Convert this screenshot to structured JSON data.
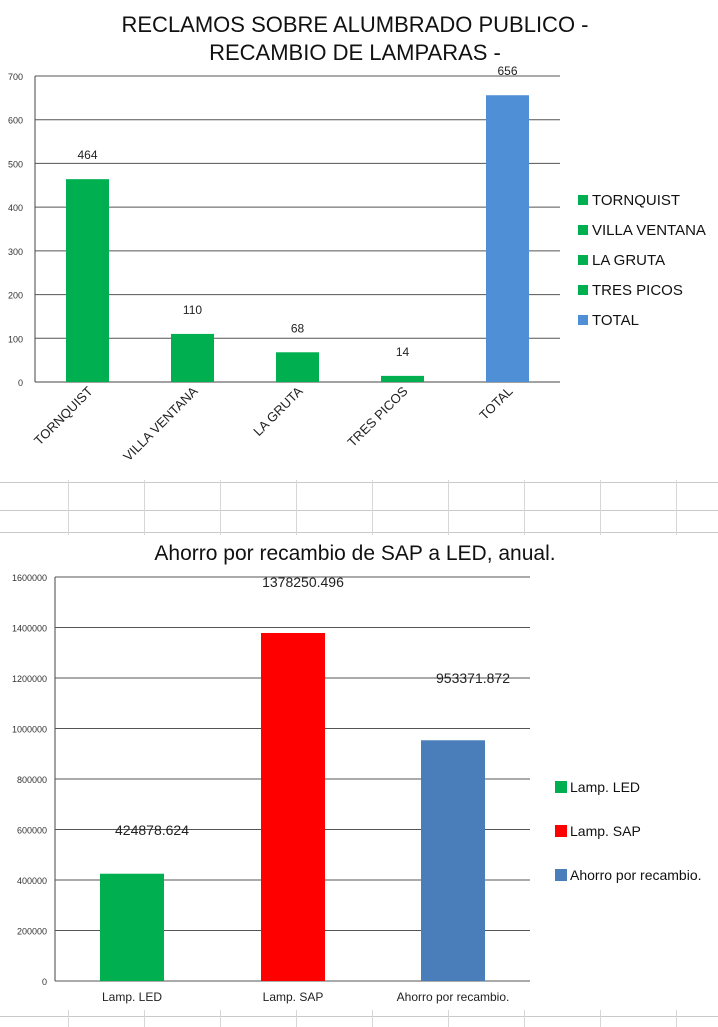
{
  "chart_data": [
    {
      "type": "bar",
      "title_line1": "RECLAMOS SOBRE ALUMBRADO PUBLICO -",
      "title_line2": "RECAMBIO DE LAMPARAS -",
      "categories": [
        "TORNQUIST",
        "VILLA VENTANA",
        "LA GRUTA",
        "TRES PICOS",
        "TOTAL"
      ],
      "values": [
        464,
        110,
        68,
        14,
        656
      ],
      "data_labels": [
        "464",
        "110",
        "68",
        "14",
        "656"
      ],
      "colors": [
        "#00b050",
        "#00b050",
        "#00b050",
        "#00b050",
        "#4f8fd6"
      ],
      "ylim": [
        0,
        700
      ],
      "yticks": [
        "0",
        "100",
        "200",
        "300",
        "400",
        "500",
        "600",
        "700"
      ],
      "legend": [
        "TORNQUIST",
        "VILLA VENTANA",
        "LA GRUTA",
        "TRES PICOS",
        "TOTAL"
      ],
      "legend_placement": "right",
      "grid": true
    },
    {
      "type": "bar",
      "title": "Ahorro por recambio de SAP a LED, anual.",
      "categories": [
        "Lamp. LED",
        "Lamp. SAP",
        "Ahorro por recambio."
      ],
      "values": [
        424878.624,
        1378250.496,
        953371.872
      ],
      "data_labels": [
        "424878.624",
        "1378250.496",
        "953371.872"
      ],
      "colors": [
        "#00b050",
        "#ff0000",
        "#4a7ebb"
      ],
      "ylim": [
        0,
        1600000
      ],
      "yticks": [
        "0",
        "200000",
        "400000",
        "600000",
        "800000",
        "1000000",
        "1200000",
        "1400000",
        "1600000"
      ],
      "legend": [
        "Lamp. LED",
        "Lamp. SAP",
        "Ahorro por recambio."
      ],
      "legend_placement": "right",
      "grid": true
    }
  ]
}
